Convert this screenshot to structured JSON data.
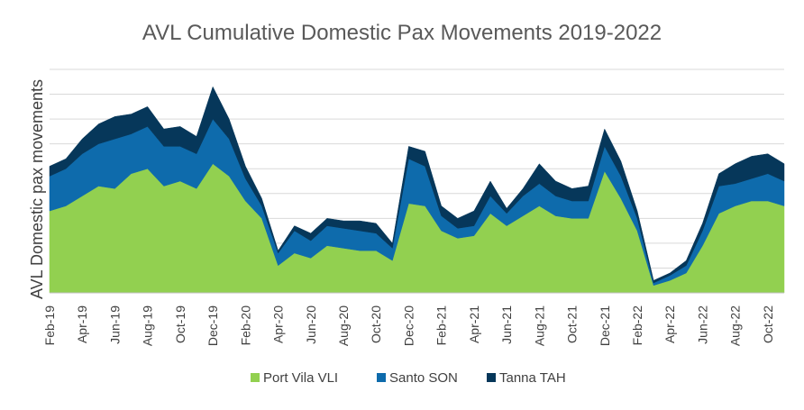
{
  "chart_data": {
    "type": "area",
    "stacked": true,
    "title": "AVL Cumulative Domestic Pax Movements 2019-2022",
    "xlabel": "",
    "ylabel": "AVL Domestic pax movements",
    "ylim": [
      0,
      9
    ],
    "grid": true,
    "legend_position": "bottom",
    "x": [
      "Feb-19",
      "Mar-19",
      "Apr-19",
      "May-19",
      "Jun-19",
      "Jul-19",
      "Aug-19",
      "Sep-19",
      "Oct-19",
      "Nov-19",
      "Dec-19",
      "Jan-20",
      "Feb-20",
      "Mar-20",
      "Apr-20",
      "May-20",
      "Jun-20",
      "Jul-20",
      "Aug-20",
      "Sep-20",
      "Oct-20",
      "Nov-20",
      "Dec-20",
      "Jan-21",
      "Feb-21",
      "Mar-21",
      "Apr-21",
      "May-21",
      "Jun-21",
      "Jul-21",
      "Aug-21",
      "Sep-21",
      "Oct-21",
      "Nov-21",
      "Dec-21",
      "Jan-22",
      "Feb-22",
      "Mar-22",
      "Apr-22",
      "May-22",
      "Jun-22",
      "Jul-22",
      "Aug-22",
      "Sep-22",
      "Oct-22",
      "Nov-22"
    ],
    "x_tick_labels": [
      "Feb-19",
      "Apr-19",
      "Jun-19",
      "Aug-19",
      "Oct-19",
      "Dec-19",
      "Feb-20",
      "Apr-20",
      "Jun-20",
      "Aug-20",
      "Oct-20",
      "Dec-20",
      "Feb-21",
      "Apr-21",
      "Jun-21",
      "Aug-21",
      "Oct-21",
      "Dec-21",
      "Feb-22",
      "Apr-22",
      "Jun-22",
      "Aug-22",
      "Oct-22"
    ],
    "series": [
      {
        "name": "Port Vila VLI",
        "color": "#92D050",
        "values": [
          3.3,
          3.5,
          3.9,
          4.3,
          4.2,
          4.8,
          5.0,
          4.3,
          4.5,
          4.2,
          5.2,
          4.7,
          3.7,
          3.0,
          1.1,
          1.6,
          1.4,
          1.9,
          1.8,
          1.7,
          1.7,
          1.3,
          3.6,
          3.5,
          2.5,
          2.2,
          2.3,
          3.2,
          2.7,
          3.1,
          3.5,
          3.1,
          3.0,
          3.0,
          4.9,
          3.8,
          2.5,
          0.3,
          0.5,
          0.8,
          1.9,
          3.2,
          3.5,
          3.7,
          3.7,
          3.5
        ]
      },
      {
        "name": "Santo SON",
        "color": "#0E6BAC",
        "values": [
          1.4,
          1.5,
          1.7,
          1.7,
          2.0,
          1.6,
          1.7,
          1.6,
          1.4,
          1.4,
          1.8,
          1.5,
          0.9,
          0.5,
          0.5,
          0.9,
          0.7,
          0.8,
          0.8,
          0.8,
          0.7,
          0.5,
          1.8,
          1.6,
          0.6,
          0.4,
          0.4,
          0.7,
          0.5,
          0.8,
          0.9,
          0.8,
          0.7,
          0.7,
          1.0,
          0.9,
          0.5,
          0.1,
          0.2,
          0.3,
          0.6,
          1.1,
          0.9,
          0.9,
          1.1,
          1.0
        ]
      },
      {
        "name": "Tanna TAH",
        "color": "#06375A",
        "values": [
          0.4,
          0.4,
          0.6,
          0.8,
          0.9,
          0.8,
          0.8,
          0.7,
          0.8,
          0.7,
          1.3,
          0.8,
          0.5,
          0.3,
          0.1,
          0.2,
          0.3,
          0.3,
          0.3,
          0.4,
          0.4,
          0.2,
          0.5,
          0.6,
          0.4,
          0.4,
          0.6,
          0.6,
          0.2,
          0.3,
          0.8,
          0.6,
          0.5,
          0.6,
          0.7,
          0.6,
          0.3,
          0.1,
          0.1,
          0.2,
          0.3,
          0.5,
          0.8,
          0.9,
          0.8,
          0.7
        ]
      }
    ]
  }
}
